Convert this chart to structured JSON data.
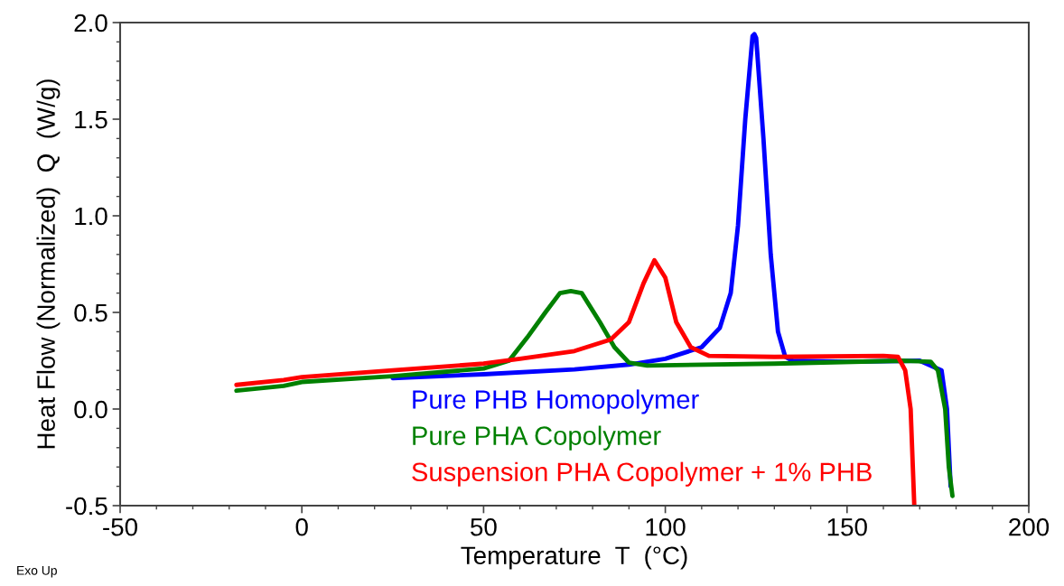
{
  "chart_data": {
    "type": "line",
    "xlabel": "Temperature  T  (°C)",
    "ylabel": "Heat Flow (Normalized)  Q  (W/g)",
    "xlim": [
      -50,
      200
    ],
    "xticks": [
      -50,
      0,
      50,
      100,
      150,
      200
    ],
    "ylim": [
      -0.5,
      2.0
    ],
    "yticks": [
      {
        "value": -0.5,
        "label": "-0.5"
      },
      {
        "value": 0.0,
        "label": "0.0"
      },
      {
        "value": 0.5,
        "label": "0.5"
      },
      {
        "value": 1.0,
        "label": "1.0"
      },
      {
        "value": 1.5,
        "label": "1.5"
      },
      {
        "value": 2.0,
        "label": "2.0"
      }
    ],
    "grid": false,
    "legend": false,
    "marker": "none",
    "line_style": "solid",
    "annotations": [
      "Exo Up"
    ],
    "series": [
      {
        "name": "Pure PHB Homopolymer",
        "color": "#0000ff",
        "x": [
          25,
          50,
          75,
          90,
          100,
          110,
          115,
          118,
          120,
          122,
          124,
          124.5,
          125,
          127,
          129,
          131,
          133,
          135,
          150,
          170,
          176,
          177.5,
          178.5
        ],
        "values": [
          0.16,
          0.18,
          0.205,
          0.23,
          0.26,
          0.32,
          0.42,
          0.6,
          0.95,
          1.5,
          1.93,
          1.94,
          1.92,
          1.4,
          0.8,
          0.4,
          0.27,
          0.25,
          0.245,
          0.25,
          0.2,
          0.0,
          -0.4
        ]
      },
      {
        "name": "Pure PHA Copolymer",
        "color": "#008000",
        "x": [
          -18,
          -5,
          0,
          25,
          50,
          57,
          62,
          67,
          71,
          74,
          77,
          82,
          86,
          90,
          95,
          130,
          165,
          173,
          175,
          177,
          178,
          179
        ],
        "values": [
          0.095,
          0.12,
          0.14,
          0.17,
          0.21,
          0.25,
          0.37,
          0.5,
          0.6,
          0.61,
          0.6,
          0.45,
          0.32,
          0.24,
          0.225,
          0.235,
          0.25,
          0.245,
          0.2,
          0.0,
          -0.3,
          -0.45
        ]
      },
      {
        "name": "Suspension PHA Copolymer + 1% PHB",
        "color": "#ff0000",
        "x": [
          -18,
          -5,
          0,
          25,
          50,
          60,
          75,
          85,
          90,
          94,
          97,
          100,
          103,
          107,
          112,
          130,
          160,
          164,
          166,
          167.5,
          168.5
        ],
        "values": [
          0.125,
          0.15,
          0.165,
          0.2,
          0.235,
          0.26,
          0.3,
          0.36,
          0.45,
          0.65,
          0.77,
          0.68,
          0.45,
          0.32,
          0.275,
          0.27,
          0.275,
          0.27,
          0.2,
          0.0,
          -0.5
        ]
      }
    ]
  }
}
